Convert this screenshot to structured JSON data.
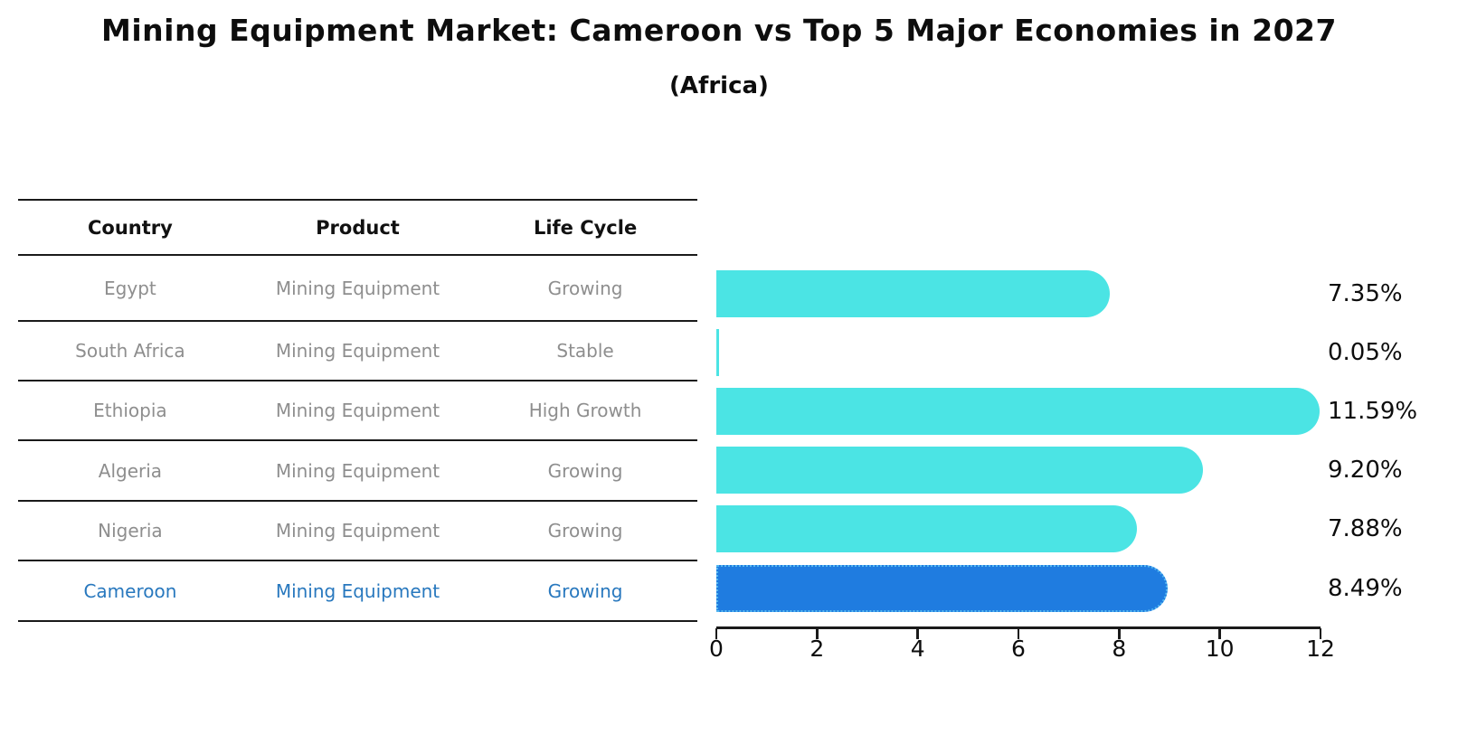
{
  "header": {
    "title": "Mining Equipment Market: Cameroon vs Top 5 Major Economies in 2027",
    "subtitle": "(Africa)"
  },
  "table": {
    "headers": [
      "Country",
      "Product",
      "Life Cycle"
    ],
    "rows": [
      {
        "country": "Egypt",
        "product": "Mining Equipment",
        "life_cycle": "Growing"
      },
      {
        "country": "South Africa",
        "product": "Mining Equipment",
        "life_cycle": "Stable"
      },
      {
        "country": "Ethiopia",
        "product": "Mining Equipment",
        "life_cycle": "High Growth"
      },
      {
        "country": "Algeria",
        "product": "Mining Equipment",
        "life_cycle": "Growing"
      },
      {
        "country": "Nigeria",
        "product": "Mining Equipment",
        "life_cycle": "Growing"
      },
      {
        "country": "Cameroon",
        "product": "Mining Equipment",
        "life_cycle": "Growing"
      }
    ]
  },
  "chart_data": {
    "type": "bar",
    "orientation": "horizontal",
    "title": "Mining Equipment Market: Cameroon vs Top 5 Major Economies in 2027",
    "subtitle": "(Africa)",
    "categories": [
      "Egypt",
      "South Africa",
      "Ethiopia",
      "Algeria",
      "Nigeria",
      "Cameroon"
    ],
    "values": [
      7.35,
      0.05,
      11.59,
      9.2,
      7.88,
      8.49
    ],
    "value_labels": [
      "7.35%",
      "0.05%",
      "11.59%",
      "9.20%",
      "7.88%",
      "8.49%"
    ],
    "highlight_index": 5,
    "highlight_category": "Cameroon",
    "xlabel": "",
    "ylabel": "",
    "xlim": [
      0,
      12
    ],
    "xticks": [
      0,
      2,
      4,
      6,
      8,
      10,
      12
    ],
    "grid": false,
    "legend": false
  },
  "colors": {
    "bar_default": "#4BE4E4",
    "bar_highlight": "#1F7CE0",
    "highlight_border": "#55B8F0",
    "row_text": "#8E8E8E",
    "highlight_text": "#2878BE",
    "header_text": "#111111",
    "title_text": "#0D0D0D"
  }
}
